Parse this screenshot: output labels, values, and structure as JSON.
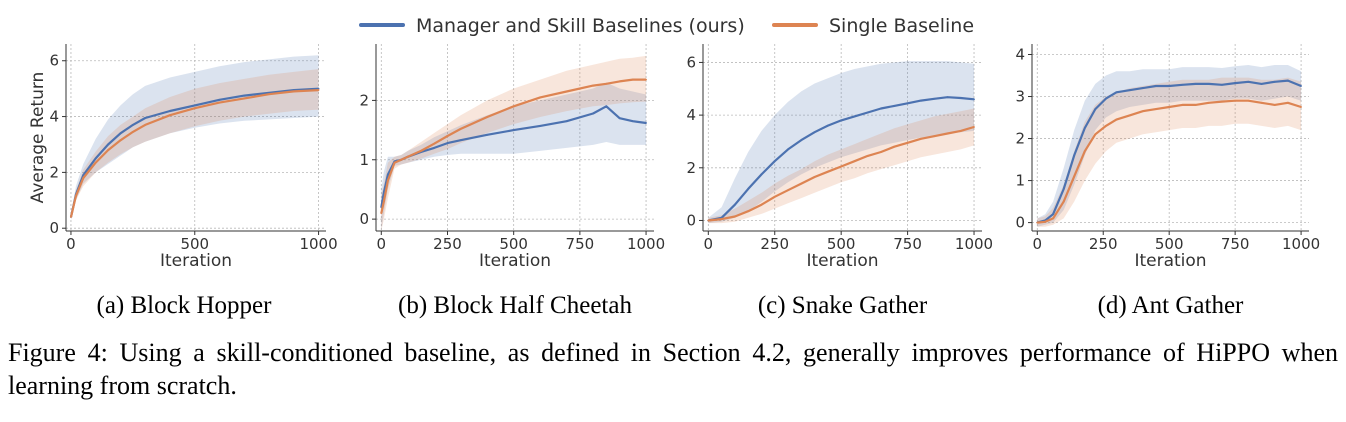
{
  "legend": {
    "placement": "top-center",
    "entries": [
      {
        "label": "Manager and Skill Baselines (ours)",
        "color": "#4c72b0"
      },
      {
        "label": "Single Baseline",
        "color": "#dd8452"
      }
    ]
  },
  "caption": "Figure 4: Using a skill-conditioned baseline, as defined in Section 4.2, generally improves performance of HiPPO when learning from scratch.",
  "chart_data": [
    {
      "type": "line",
      "subcaption": "(a) Block Hopper",
      "xlabel": "Iteration",
      "ylabel": "Average Return",
      "xlim": [
        -20,
        1030
      ],
      "ylim": [
        -0.1,
        6.6
      ],
      "xticks": [
        0,
        500,
        1000
      ],
      "yticks": [
        0,
        2,
        4,
        6
      ],
      "grid": true,
      "x": [
        0,
        20,
        50,
        100,
        150,
        200,
        250,
        300,
        400,
        500,
        600,
        700,
        800,
        900,
        1000
      ],
      "series": [
        {
          "name": "Manager and Skill Baselines (ours)",
          "color": "#4c72b0",
          "values": [
            0.4,
            1.2,
            1.9,
            2.5,
            3.0,
            3.4,
            3.7,
            3.95,
            4.2,
            4.4,
            4.6,
            4.75,
            4.85,
            4.95,
            5.0
          ],
          "lower": [
            0.3,
            1.0,
            1.6,
            2.0,
            2.3,
            2.6,
            2.9,
            3.1,
            3.4,
            3.6,
            3.75,
            3.85,
            3.9,
            3.95,
            4.0
          ],
          "upper": [
            0.5,
            1.5,
            2.3,
            3.2,
            3.9,
            4.4,
            4.8,
            5.1,
            5.4,
            5.6,
            5.8,
            5.95,
            6.05,
            6.15,
            6.2
          ]
        },
        {
          "name": "Single Baseline",
          "color": "#dd8452",
          "values": [
            0.4,
            1.15,
            1.8,
            2.35,
            2.8,
            3.15,
            3.45,
            3.7,
            4.05,
            4.3,
            4.5,
            4.65,
            4.8,
            4.9,
            4.95
          ],
          "lower": [
            0.3,
            1.0,
            1.5,
            2.0,
            2.35,
            2.65,
            2.9,
            3.1,
            3.4,
            3.65,
            3.85,
            4.0,
            4.1,
            4.2,
            4.25
          ],
          "upper": [
            0.5,
            1.35,
            2.1,
            2.75,
            3.3,
            3.7,
            4.0,
            4.3,
            4.7,
            5.0,
            5.2,
            5.35,
            5.5,
            5.6,
            5.7
          ]
        }
      ]
    },
    {
      "type": "line",
      "subcaption": "(b) Block Half Cheetah",
      "xlabel": "Iteration",
      "ylabel": "",
      "xlim": [
        -20,
        1030
      ],
      "ylim": [
        -0.2,
        2.95
      ],
      "xticks": [
        0,
        250,
        500,
        750,
        1000
      ],
      "yticks": [
        0,
        1,
        2
      ],
      "grid": true,
      "x": [
        0,
        10,
        25,
        50,
        75,
        100,
        150,
        200,
        250,
        300,
        400,
        500,
        600,
        700,
        800,
        850,
        900,
        950,
        1000
      ],
      "series": [
        {
          "name": "Manager and Skill Baselines (ours)",
          "color": "#4c72b0",
          "values": [
            0.2,
            0.45,
            0.75,
            0.97,
            1.0,
            1.05,
            1.13,
            1.2,
            1.28,
            1.33,
            1.42,
            1.5,
            1.57,
            1.65,
            1.78,
            1.9,
            1.7,
            1.65,
            1.62
          ],
          "lower": [
            -0.2,
            0.1,
            0.5,
            0.9,
            0.92,
            0.95,
            1.0,
            1.05,
            1.08,
            1.1,
            1.1,
            1.1,
            1.15,
            1.2,
            1.25,
            1.3,
            1.25,
            1.25,
            1.25
          ],
          "upper": [
            0.5,
            0.8,
            1.05,
            1.05,
            1.08,
            1.15,
            1.25,
            1.38,
            1.48,
            1.58,
            1.75,
            1.9,
            2.0,
            2.1,
            2.2,
            2.3,
            2.2,
            2.15,
            2.1
          ]
        },
        {
          "name": "Single Baseline",
          "color": "#dd8452",
          "values": [
            0.1,
            0.3,
            0.65,
            0.95,
            1.0,
            1.05,
            1.15,
            1.27,
            1.4,
            1.52,
            1.72,
            1.9,
            2.05,
            2.15,
            2.25,
            2.28,
            2.32,
            2.35,
            2.35
          ],
          "lower": [
            -0.2,
            0.0,
            0.35,
            0.85,
            0.92,
            0.95,
            1.02,
            1.1,
            1.18,
            1.28,
            1.45,
            1.6,
            1.72,
            1.82,
            1.9,
            1.92,
            1.95,
            1.97,
            1.98
          ],
          "upper": [
            0.4,
            0.6,
            0.95,
            1.05,
            1.08,
            1.15,
            1.3,
            1.45,
            1.6,
            1.75,
            2.0,
            2.2,
            2.35,
            2.5,
            2.6,
            2.65,
            2.7,
            2.72,
            2.75
          ]
        }
      ]
    },
    {
      "type": "line",
      "subcaption": "(c) Snake Gather",
      "xlabel": "Iteration",
      "ylabel": "",
      "xlim": [
        -20,
        1030
      ],
      "ylim": [
        -0.4,
        6.7
      ],
      "xticks": [
        0,
        250,
        500,
        750,
        1000
      ],
      "yticks": [
        0,
        2,
        4,
        6
      ],
      "grid": true,
      "x": [
        0,
        50,
        100,
        150,
        200,
        250,
        300,
        350,
        400,
        450,
        500,
        550,
        600,
        650,
        700,
        750,
        800,
        850,
        900,
        950,
        1000
      ],
      "series": [
        {
          "name": "Manager and Skill Baselines (ours)",
          "color": "#4c72b0",
          "values": [
            0,
            0.1,
            0.6,
            1.2,
            1.75,
            2.25,
            2.7,
            3.05,
            3.35,
            3.6,
            3.8,
            3.95,
            4.1,
            4.25,
            4.35,
            4.45,
            4.55,
            4.62,
            4.68,
            4.65,
            4.6
          ],
          "lower": [
            -0.1,
            -0.05,
            0.1,
            0.35,
            0.7,
            1.1,
            1.45,
            1.75,
            2.0,
            2.2,
            2.4,
            2.55,
            2.7,
            2.85,
            2.95,
            3.05,
            3.15,
            3.2,
            3.3,
            3.35,
            3.4
          ],
          "upper": [
            0.1,
            0.5,
            1.6,
            2.6,
            3.4,
            4.0,
            4.5,
            4.9,
            5.2,
            5.4,
            5.6,
            5.75,
            5.85,
            5.95,
            6.0,
            6.05,
            6.05,
            6.05,
            6.05,
            6.0,
            5.95
          ]
        },
        {
          "name": "Single Baseline",
          "color": "#dd8452",
          "values": [
            0,
            0.05,
            0.15,
            0.35,
            0.6,
            0.9,
            1.15,
            1.4,
            1.65,
            1.85,
            2.05,
            2.25,
            2.45,
            2.6,
            2.8,
            2.95,
            3.1,
            3.2,
            3.3,
            3.4,
            3.55
          ],
          "lower": [
            -0.1,
            -0.1,
            -0.05,
            0.1,
            0.25,
            0.45,
            0.65,
            0.85,
            1.05,
            1.25,
            1.45,
            1.6,
            1.8,
            1.95,
            2.1,
            2.25,
            2.4,
            2.5,
            2.6,
            2.7,
            2.85
          ],
          "upper": [
            0.1,
            0.2,
            0.45,
            0.75,
            1.05,
            1.4,
            1.7,
            1.95,
            2.25,
            2.5,
            2.7,
            2.9,
            3.1,
            3.3,
            3.5,
            3.65,
            3.8,
            3.95,
            4.05,
            4.15,
            4.25
          ]
        }
      ]
    },
    {
      "type": "line",
      "subcaption": "(d) Ant Gather",
      "xlabel": "Iteration",
      "ylabel": "",
      "xlim": [
        -20,
        1030
      ],
      "ylim": [
        -0.2,
        4.25
      ],
      "xticks": [
        0,
        250,
        500,
        750,
        1000
      ],
      "yticks": [
        0,
        1,
        2,
        3,
        4
      ],
      "grid": true,
      "x": [
        0,
        30,
        60,
        100,
        140,
        180,
        220,
        260,
        300,
        350,
        400,
        450,
        500,
        550,
        600,
        650,
        700,
        750,
        800,
        850,
        900,
        950,
        1000
      ],
      "series": [
        {
          "name": "Manager and Skill Baselines (ours)",
          "color": "#4c72b0",
          "values": [
            0,
            0.05,
            0.2,
            0.8,
            1.6,
            2.25,
            2.7,
            2.95,
            3.1,
            3.15,
            3.2,
            3.25,
            3.25,
            3.28,
            3.3,
            3.3,
            3.28,
            3.32,
            3.35,
            3.3,
            3.35,
            3.38,
            3.25
          ],
          "lower": [
            -0.1,
            -0.05,
            0.0,
            0.3,
            0.9,
            1.6,
            2.2,
            2.5,
            2.65,
            2.75,
            2.8,
            2.85,
            2.85,
            2.9,
            2.9,
            2.9,
            2.9,
            2.95,
            2.95,
            2.9,
            2.95,
            3.0,
            2.9
          ],
          "upper": [
            0.1,
            0.2,
            0.5,
            1.3,
            2.2,
            2.9,
            3.3,
            3.5,
            3.6,
            3.6,
            3.65,
            3.65,
            3.65,
            3.7,
            3.7,
            3.7,
            3.68,
            3.72,
            3.75,
            3.7,
            3.75,
            3.75,
            3.6
          ]
        },
        {
          "name": "Single Baseline",
          "color": "#dd8452",
          "values": [
            0,
            0.02,
            0.1,
            0.5,
            1.1,
            1.7,
            2.1,
            2.3,
            2.45,
            2.55,
            2.65,
            2.7,
            2.75,
            2.8,
            2.8,
            2.85,
            2.88,
            2.9,
            2.9,
            2.85,
            2.8,
            2.85,
            2.75
          ],
          "lower": [
            -0.1,
            -0.1,
            -0.05,
            0.1,
            0.5,
            1.0,
            1.4,
            1.7,
            1.9,
            2.0,
            2.1,
            2.15,
            2.2,
            2.25,
            2.25,
            2.3,
            2.3,
            2.35,
            2.35,
            2.3,
            2.25,
            2.3,
            2.2
          ],
          "upper": [
            0.1,
            0.15,
            0.35,
            0.9,
            1.7,
            2.4,
            2.8,
            3.0,
            3.1,
            3.2,
            3.25,
            3.3,
            3.35,
            3.4,
            3.4,
            3.4,
            3.45,
            3.45,
            3.45,
            3.4,
            3.4,
            3.45,
            3.35
          ]
        }
      ]
    }
  ]
}
